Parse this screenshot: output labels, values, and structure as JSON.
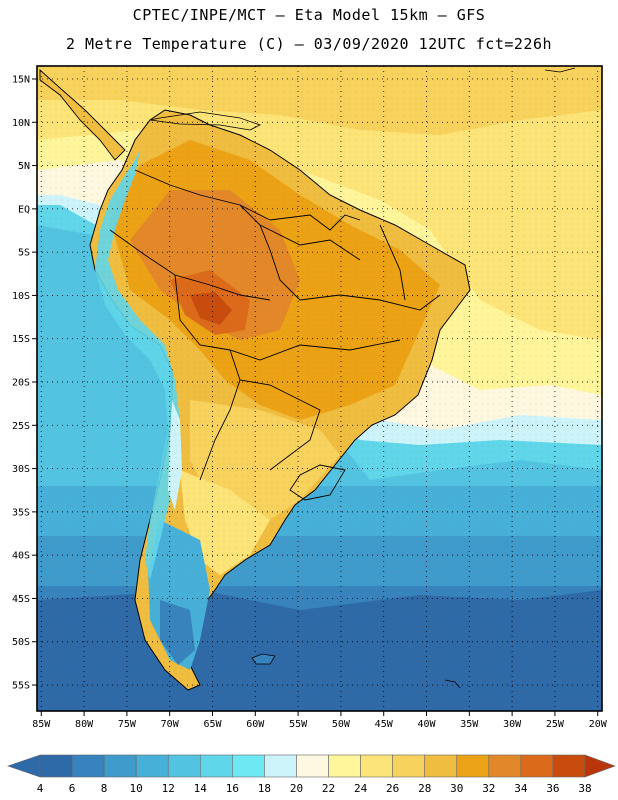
{
  "title": {
    "line1": "CPTEC/INPE/MCT –  Eta Model 15km – GFS",
    "line2": "2 Metre Temperature (C) – 03/09/2020 12UTC fct=226h"
  },
  "map": {
    "lat_labels": [
      "15N",
      "10N",
      "5N",
      "EQ",
      "5S",
      "10S",
      "15S",
      "20S",
      "25S",
      "30S",
      "35S",
      "40S",
      "45S",
      "50S",
      "55S"
    ],
    "lat_values": [
      15,
      10,
      5,
      0,
      -5,
      -10,
      -15,
      -20,
      -25,
      -30,
      -35,
      -40,
      -45,
      -50,
      -55
    ],
    "lon_labels": [
      "85W",
      "80W",
      "75W",
      "70W",
      "65W",
      "60W",
      "55W",
      "50W",
      "45W",
      "40W",
      "35W",
      "30W",
      "25W",
      "20W"
    ],
    "lon_values": [
      -85,
      -80,
      -75,
      -70,
      -65,
      -60,
      -55,
      -50,
      -45,
      -40,
      -35,
      -30,
      -25,
      -20
    ],
    "lon_range": [
      -85.5,
      -19.5
    ],
    "lat_range": [
      -58,
      16.5
    ]
  },
  "colorbar": {
    "labels": [
      "4",
      "6",
      "8",
      "10",
      "12",
      "14",
      "16",
      "18",
      "20",
      "22",
      "24",
      "26",
      "28",
      "30",
      "32",
      "34",
      "36",
      "38"
    ],
    "colors": [
      "#2f6aa8",
      "#3783bd",
      "#3f9bcc",
      "#47b0d9",
      "#52c4e2",
      "#5fd6ea",
      "#6ee8f2",
      "#cdf4fb",
      "#fff8e0",
      "#fff59b",
      "#fde478",
      "#f7d25d",
      "#efbd3f",
      "#eba214",
      "#e38828",
      "#db6a1a",
      "#c84c0d",
      "#b8360a"
    ]
  }
}
